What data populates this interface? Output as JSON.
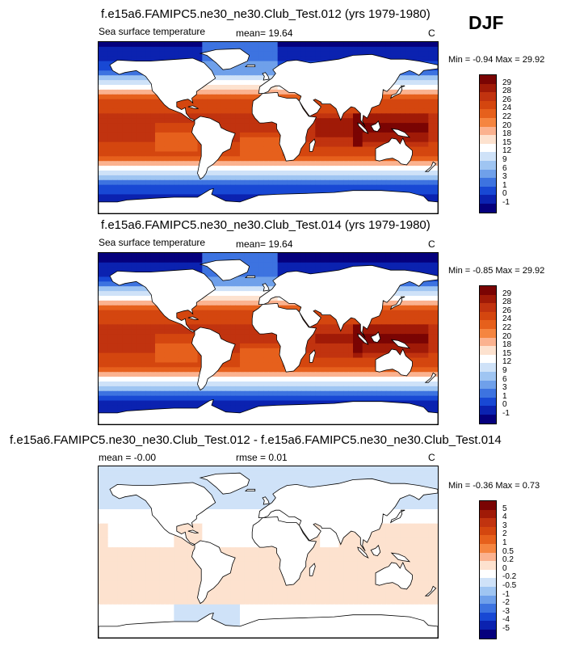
{
  "season": "DJF",
  "panels": [
    {
      "title": "f.e15a6.FAMIPC5.ne30_ne30.Club_Test.012 (yrs 1979-1980)",
      "variable": "Sea surface temperature",
      "mean_label": "mean=",
      "mean_value": "19.64",
      "units": "C",
      "minmax": "Min = -0.94 Max = 29.92",
      "colorbar_labels": [
        "29",
        "28",
        "26",
        "24",
        "22",
        "20",
        "18",
        "15",
        "12",
        "9",
        "6",
        "3",
        "1",
        "0",
        "-1"
      ],
      "colors": [
        "#7a0403",
        "#a01a07",
        "#c1330f",
        "#d4460f",
        "#e6601c",
        "#f58540",
        "#fbb28f",
        "#fde2cf",
        "#ffffff",
        "#cfe2f8",
        "#9fc5f2",
        "#6fa0ea",
        "#3d73e0",
        "#1848d4",
        "#0b22b0",
        "#05007d"
      ],
      "field": "sst"
    },
    {
      "title": "f.e15a6.FAMIPC5.ne30_ne30.Club_Test.014 (yrs 1979-1980)",
      "variable": "Sea surface temperature",
      "mean_label": "mean=",
      "mean_value": "19.64",
      "units": "C",
      "minmax": "Min = -0.85 Max = 29.92",
      "colorbar_labels": [
        "29",
        "28",
        "26",
        "24",
        "22",
        "20",
        "18",
        "15",
        "12",
        "9",
        "6",
        "3",
        "1",
        "0",
        "-1"
      ],
      "colors": [
        "#7a0403",
        "#a01a07",
        "#c1330f",
        "#d4460f",
        "#e6601c",
        "#f58540",
        "#fbb28f",
        "#fde2cf",
        "#ffffff",
        "#cfe2f8",
        "#9fc5f2",
        "#6fa0ea",
        "#3d73e0",
        "#1848d4",
        "#0b22b0",
        "#05007d"
      ],
      "field": "sst"
    },
    {
      "title": "f.e15a6.FAMIPC5.ne30_ne30.Club_Test.012 - f.e15a6.FAMIPC5.ne30_ne30.Club_Test.014",
      "mean_label": "mean =",
      "mean_value": "-0.00",
      "rmse_label": "rmse =",
      "rmse_value": "0.01",
      "units": "C",
      "minmax": "Min = -0.36 Max =  0.73",
      "colorbar_labels": [
        "5",
        "4",
        "3",
        "2",
        "1",
        "0.5",
        "0.2",
        "0",
        "-0.2",
        "-0.5",
        "-1",
        "-2",
        "-3",
        "-4",
        "-5"
      ],
      "colors": [
        "#7a0403",
        "#a01a07",
        "#c1330f",
        "#d4460f",
        "#e6601c",
        "#f58540",
        "#fbb28f",
        "#fde2cf",
        "#ffffff",
        "#cfe2f8",
        "#9fc5f2",
        "#6fa0ea",
        "#3d73e0",
        "#1848d4",
        "#0b22b0",
        "#05007d"
      ],
      "field": "diff"
    }
  ]
}
